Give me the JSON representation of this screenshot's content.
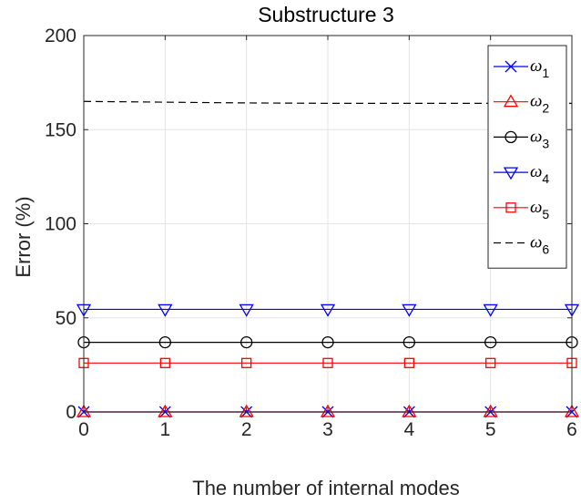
{
  "chart_data": {
    "type": "line",
    "title": "Substructure 3",
    "xlabel": "The number of internal modes",
    "ylabel": "Error (%)",
    "x": [
      0,
      1,
      2,
      3,
      4,
      5,
      6
    ],
    "xlim": [
      0,
      6
    ],
    "ylim": [
      0,
      200
    ],
    "xticks": [
      "0",
      "1",
      "2",
      "3",
      "4",
      "5",
      "6"
    ],
    "yticks": [
      "0",
      "50",
      "100",
      "150",
      "200"
    ],
    "ytick_values": [
      0,
      50,
      100,
      150,
      200
    ],
    "grid": true,
    "legend_position": "top-right",
    "series": [
      {
        "name": "ω",
        "subscript": "1",
        "values": [
          0,
          0,
          0,
          0,
          0,
          0,
          0
        ],
        "color": "#0000ff",
        "marker": "x",
        "line": "solid"
      },
      {
        "name": "ω",
        "subscript": "2",
        "values": [
          0,
          0,
          0,
          0,
          0,
          0,
          0
        ],
        "color": "#ff0000",
        "marker": "triangle-up",
        "line": "solid"
      },
      {
        "name": "ω",
        "subscript": "3",
        "values": [
          37,
          37,
          37,
          37,
          37,
          37,
          37
        ],
        "color": "#000000",
        "marker": "circle",
        "line": "solid"
      },
      {
        "name": "ω",
        "subscript": "4",
        "values": [
          54.5,
          54.5,
          54.5,
          54.5,
          54.5,
          54.5,
          54.5
        ],
        "color": "#0000ff",
        "marker": "triangle-down",
        "line": "solid"
      },
      {
        "name": "ω",
        "subscript": "5",
        "values": [
          26,
          26,
          26,
          26,
          26,
          26,
          26
        ],
        "color": "#ff0000",
        "marker": "square",
        "line": "solid"
      },
      {
        "name": "ω",
        "subscript": "6",
        "values": [
          165,
          164.6,
          164.2,
          164.0,
          164.0,
          164.0,
          164.0
        ],
        "color": "#000000",
        "marker": "none",
        "line": "dashed"
      }
    ]
  }
}
